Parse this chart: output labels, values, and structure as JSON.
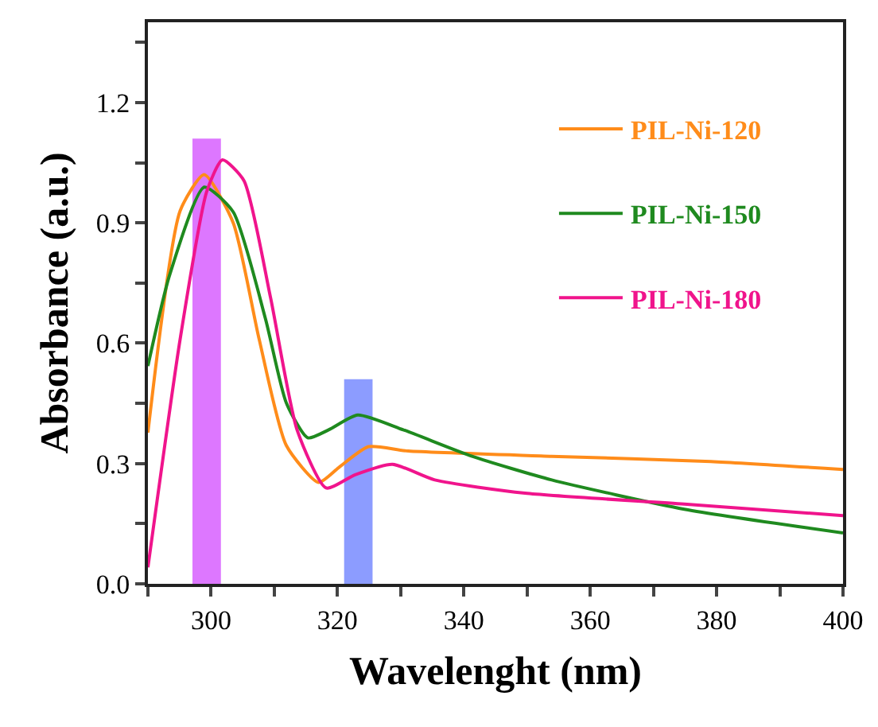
{
  "chart_data": {
    "type": "line",
    "xlabel": "Wavelenght (nm)",
    "ylabel": "Absorbance (a.u.)",
    "xlim": [
      290,
      400
    ],
    "ylim": [
      0,
      1.4
    ],
    "xticks": [
      {
        "value": 290,
        "label": null
      },
      300,
      {
        "value": 310,
        "label": null
      },
      320,
      {
        "value": 330,
        "label": null
      },
      340,
      {
        "value": 350,
        "label": null
      },
      360,
      {
        "value": 370,
        "label": null
      },
      380,
      {
        "value": 390,
        "label": null
      },
      400
    ],
    "yticks": [
      "0.0",
      {
        "value": 0.15,
        "label": null
      },
      {
        "value": 0.3,
        "label": "0.3"
      },
      {
        "value": 0.45,
        "label": null
      },
      {
        "value": 0.6,
        "label": "0.6"
      },
      {
        "value": 0.75,
        "label": null
      },
      {
        "value": 0.9,
        "label": "0.9"
      },
      {
        "value": 1.05,
        "label": null
      },
      {
        "value": 1.2,
        "label": "1.2"
      },
      {
        "value": 1.35,
        "label": null
      }
    ],
    "grid": false,
    "legend": "top right",
    "marker": "none",
    "line_style": "solid",
    "series": [
      {
        "type": "bar",
        "x": [
          299.3,
          323.3
        ],
        "values": [
          1.11,
          0.51
        ],
        "colors": [
          "#dd77ff",
          "#8c9cff"
        ]
      },
      {
        "name": "PIL-Ni-120",
        "color": "#ff8c1a",
        "x": [
          290,
          295.1,
          298.9,
          303.5,
          307.6,
          311.9,
          317,
          320.2,
          324.9,
          331.2,
          353.9,
          379.1,
          400
        ],
        "values": [
          0.377,
          0.93,
          1.02,
          0.9,
          0.61,
          0.345,
          0.253,
          0.29,
          0.342,
          0.331,
          0.318,
          0.305,
          0.285
        ]
      },
      {
        "name": "PIL-Ni-150",
        "color": "#1f8a1f",
        "x": [
          290,
          293.4,
          298.9,
          303.5,
          308.6,
          311.9,
          315.3,
          318.6,
          323.2,
          330.4,
          341.3,
          353.9,
          374.9,
          400
        ],
        "values": [
          0.543,
          0.768,
          0.989,
          0.927,
          0.661,
          0.451,
          0.364,
          0.384,
          0.421,
          0.384,
          0.318,
          0.259,
          0.186,
          0.127
        ]
      },
      {
        "name": "PIL-Ni-180",
        "color": "#f0148c",
        "x": [
          290,
          295.1,
          299.3,
          301.8,
          305.2,
          309.4,
          313.6,
          318.2,
          322.8,
          328.7,
          335.4,
          349.7,
          374.9,
          400
        ],
        "values": [
          0.041,
          0.61,
          0.978,
          1.057,
          1.005,
          0.714,
          0.384,
          0.239,
          0.272,
          0.298,
          0.259,
          0.226,
          0.199,
          0.17
        ]
      }
    ]
  }
}
